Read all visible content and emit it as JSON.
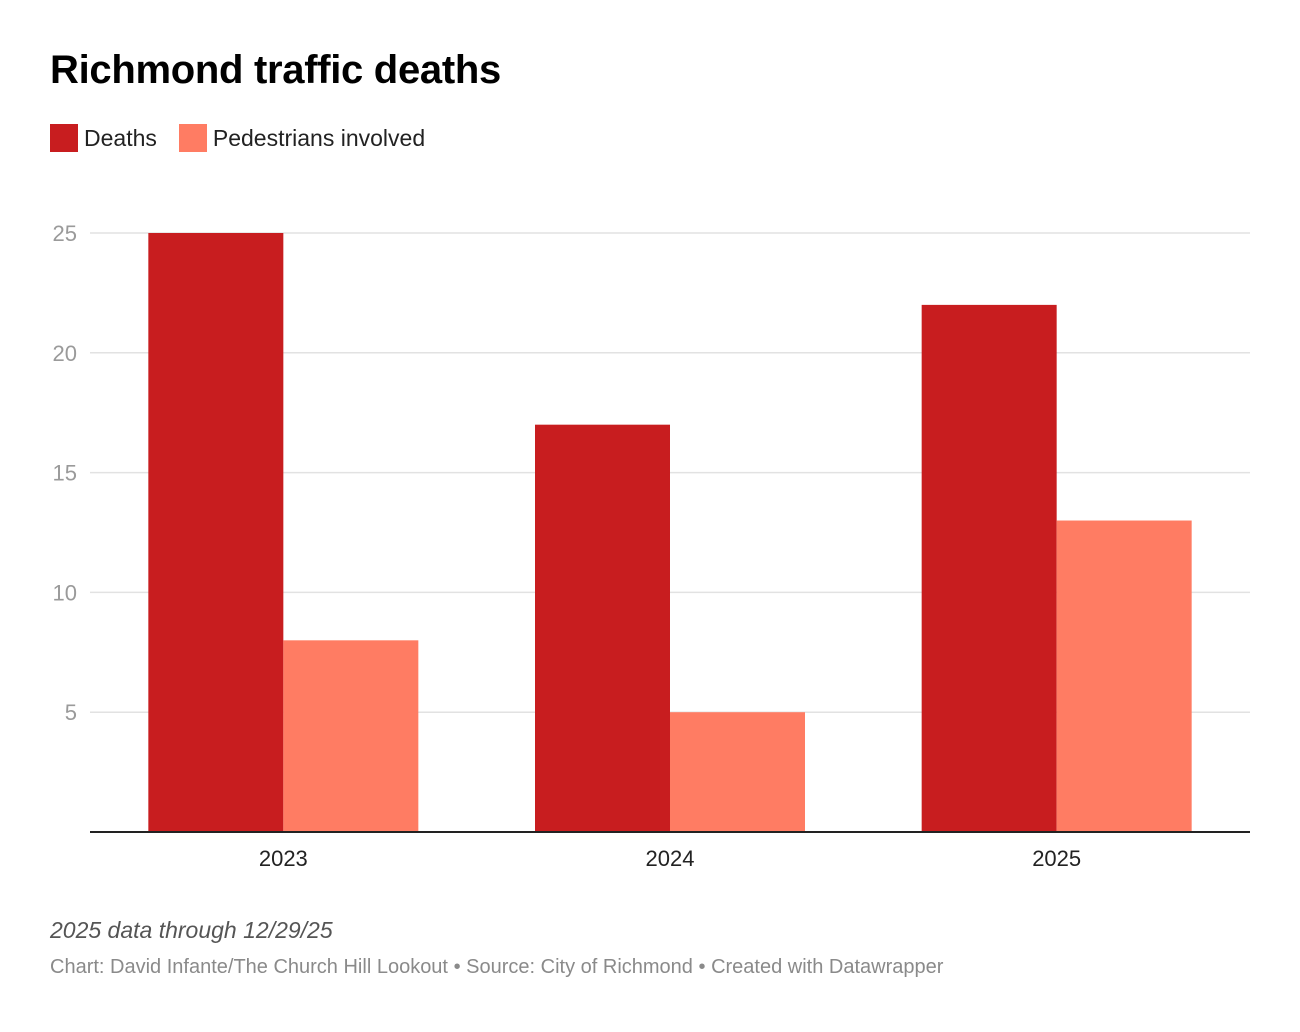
{
  "chart_data": {
    "type": "bar",
    "title": "Richmond traffic deaths",
    "categories": [
      "2023",
      "2024",
      "2025"
    ],
    "series": [
      {
        "name": "Deaths",
        "color": "#c81d1f",
        "values": [
          25,
          17,
          22
        ]
      },
      {
        "name": "Pedestrians involved",
        "color": "#ff7c63",
        "values": [
          8,
          5,
          13
        ]
      }
    ],
    "yticks": [
      5,
      10,
      15,
      20,
      25
    ],
    "ylim": [
      0,
      25
    ],
    "xlabel": "",
    "ylabel": "",
    "grid": true,
    "legend": "top-left"
  },
  "notes": "2025 data through 12/29/25",
  "footer": {
    "chart_label": "Chart:",
    "chart_author": "David Infante/The Church Hill Lookout",
    "separator": "•",
    "source_label": "Source:",
    "source": "City of Richmond",
    "created_with": "Created with Datawrapper"
  }
}
